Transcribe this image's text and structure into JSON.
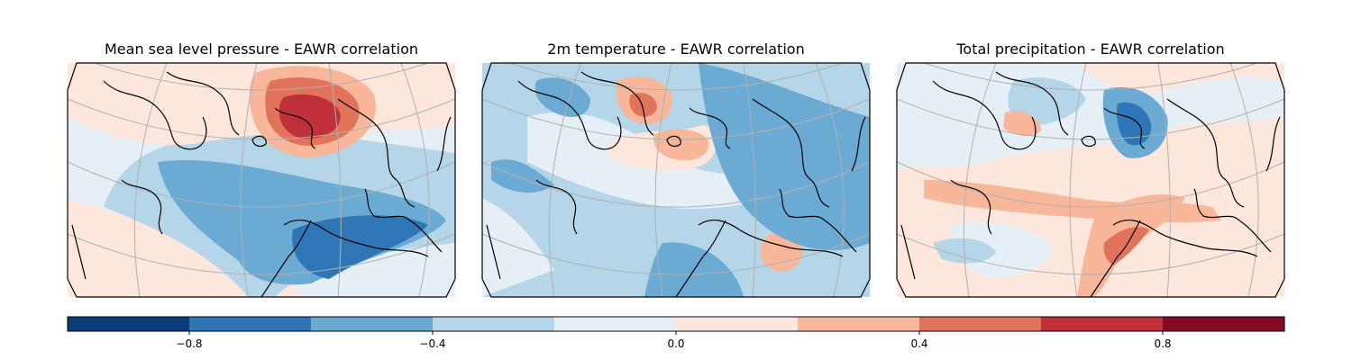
{
  "panels": [
    {
      "title": "Mean sea level pressure - EAWR correlation"
    },
    {
      "title": "2m temperature - EAWR correlation"
    },
    {
      "title": "Total precipitation - EAWR correlation"
    }
  ],
  "colorbar": {
    "levels": [
      -1.0,
      -0.8,
      -0.6,
      -0.4,
      -0.2,
      0.0,
      0.2,
      0.4,
      0.6,
      0.8,
      1.0
    ],
    "colors": [
      "#0b3c7a",
      "#2f76b6",
      "#6aaad3",
      "#b4d6e8",
      "#e7eff6",
      "#fde6dc",
      "#f8b79b",
      "#e2735b",
      "#c0303a",
      "#850920"
    ],
    "ticks": [
      {
        "value": -0.8,
        "label": "−0.8"
      },
      {
        "value": -0.4,
        "label": "−0.4"
      },
      {
        "value": 0.0,
        "label": "0.0"
      },
      {
        "value": 0.4,
        "label": "0.4"
      },
      {
        "value": 0.8,
        "label": "0.8"
      }
    ]
  },
  "colors": {
    "gridline": "#b0b0b0",
    "coastline": "#000000",
    "frame": "#000000"
  }
}
